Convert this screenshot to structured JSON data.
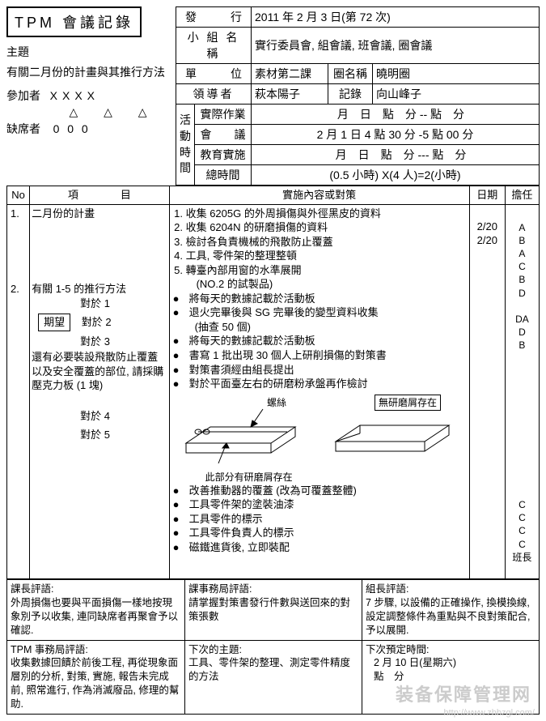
{
  "doc_title": "TPM 會議記錄",
  "header": {
    "issue_label": "發　　　行",
    "issue_value": "2011 年 2 月 3 日(第 72 次)",
    "group_name_label": "小 組 名 稱",
    "group_name_value": "實行委員會, 組會議, 班會議, 圈會議",
    "unit_label": "單　　　位",
    "unit_value": "素材第二課",
    "circle_name_label": "圈名稱",
    "circle_name_value": "曉明圈",
    "leader_label": "領導者",
    "leader_value": "萩本陽子",
    "recorder_label": "記錄",
    "recorder_value": "向山峰子",
    "activity_label": "活動時間",
    "practical_label": "實際作業",
    "practical_value": "　月　日　點　分 -- 點　分",
    "meeting_label": "會　　議",
    "meeting_value": " 2 月 1 日 4 點 30 分 -5 點 00 分",
    "education_label": "教育實施",
    "education_value": "　月　日　點　分 --- 點　分",
    "total_label": "總時間",
    "total_value": "(0.5 小時) X(4 人)=2(小時)"
  },
  "left": {
    "subject_label": "主題",
    "subject_text": "有關二月份的計畫與其推行方法",
    "participants_label": "參加者",
    "participants_value": "XXXX",
    "triangles": "△ △ △",
    "absent_label": "缺席者",
    "absent_value": "0  0  0"
  },
  "main_header": {
    "no": "No",
    "item": "項　　　　目",
    "content": "實施內容或對策",
    "date": "日期",
    "resp": "擔任"
  },
  "main": {
    "row1_no": "1.",
    "row1_item": "二月份的計畫",
    "row2_no": "2.",
    "row2_item": "有關 1-5 的推行方法",
    "for1": "對於 1",
    "for2": "對於 2",
    "for3": "對於 3",
    "for4": "對於 4",
    "for5": "對於 5",
    "hope": "期望",
    "extra_note": "還有必要裝設飛散防止覆蓋以及安全覆蓋的部位, 請採購壓克力板 (1 塊)",
    "content_ol": [
      "收集 6205G 的外周損傷與外徑黑皮的資料",
      "收集 6204N 的研磨損傷的資料",
      "檢討各負責機械的飛散防止覆蓋",
      "工具, 零件架的整理整頓",
      "轉臺內部用窗的水準展開\n　(NO.2 的試製品)"
    ],
    "content_bullets_a": [
      "將每天的數據記載於活動板",
      "退火完畢後與 SG 完畢後的變型資料收集\n　(抽查 50 個)",
      "將每天的數據記載於活動板",
      "書寫 1 批出現 30 個人上研削損傷的對策書",
      "對策書須經由組長提出",
      "對於平面臺左右的研磨粉承盤再作檢討"
    ],
    "diag_left": "此部分有研磨屑存在",
    "diag_mid": "螺絲",
    "diag_right": "無研磨屑存在",
    "content_bullets_b": [
      "改善推動器的覆蓋 (改為可覆蓋整體)",
      "工具零件架的塗裝油漆",
      "工具零件的標示",
      "工具零件負責人的標示",
      "磁鐵進貨後, 立即裝配"
    ],
    "dates": "2/20\n2/20",
    "resp_a": "A\nB\nA\nC\nB\nD\n\nDA\nD\nB",
    "resp_b": "C\nC\nC\nC\n班長"
  },
  "bottom": {
    "r1c1_label": "課長評語:",
    "r1c1_text": "外周損傷也要與平面損傷一樣地按現象別予以收集, 連同缺席者再聚會予以確認.",
    "r1c2_label": "課事務局評語:",
    "r1c2_text": "請掌握對策書發行件數與送回來的對策張數",
    "r1c3_label": "組長評語:",
    "r1c3_text": "7 步驟, 以設備的正確操作, 換模換線, 設定調整條件為重點與不良對策配合, 予以展開.",
    "r2c1_label": "TPM 事務局評語:",
    "r2c1_text": "收集數據回饋於前後工程, 再從現象面層別的分析, 對策, 實施, 報告未完成前, 照常進行, 作為消滅廢品, 修理的幫助.",
    "r2c2_label": "下次的主題:",
    "r2c2_text": "工具、零件架的整理、測定零件精度的方法",
    "r2c3_label": "下次預定時間:",
    "r2c3_text": "2 月 10 日(星期六)\n點　分"
  },
  "watermark": "装备保障管理网",
  "watermark_url": "http://www.zbbzgl.com/"
}
